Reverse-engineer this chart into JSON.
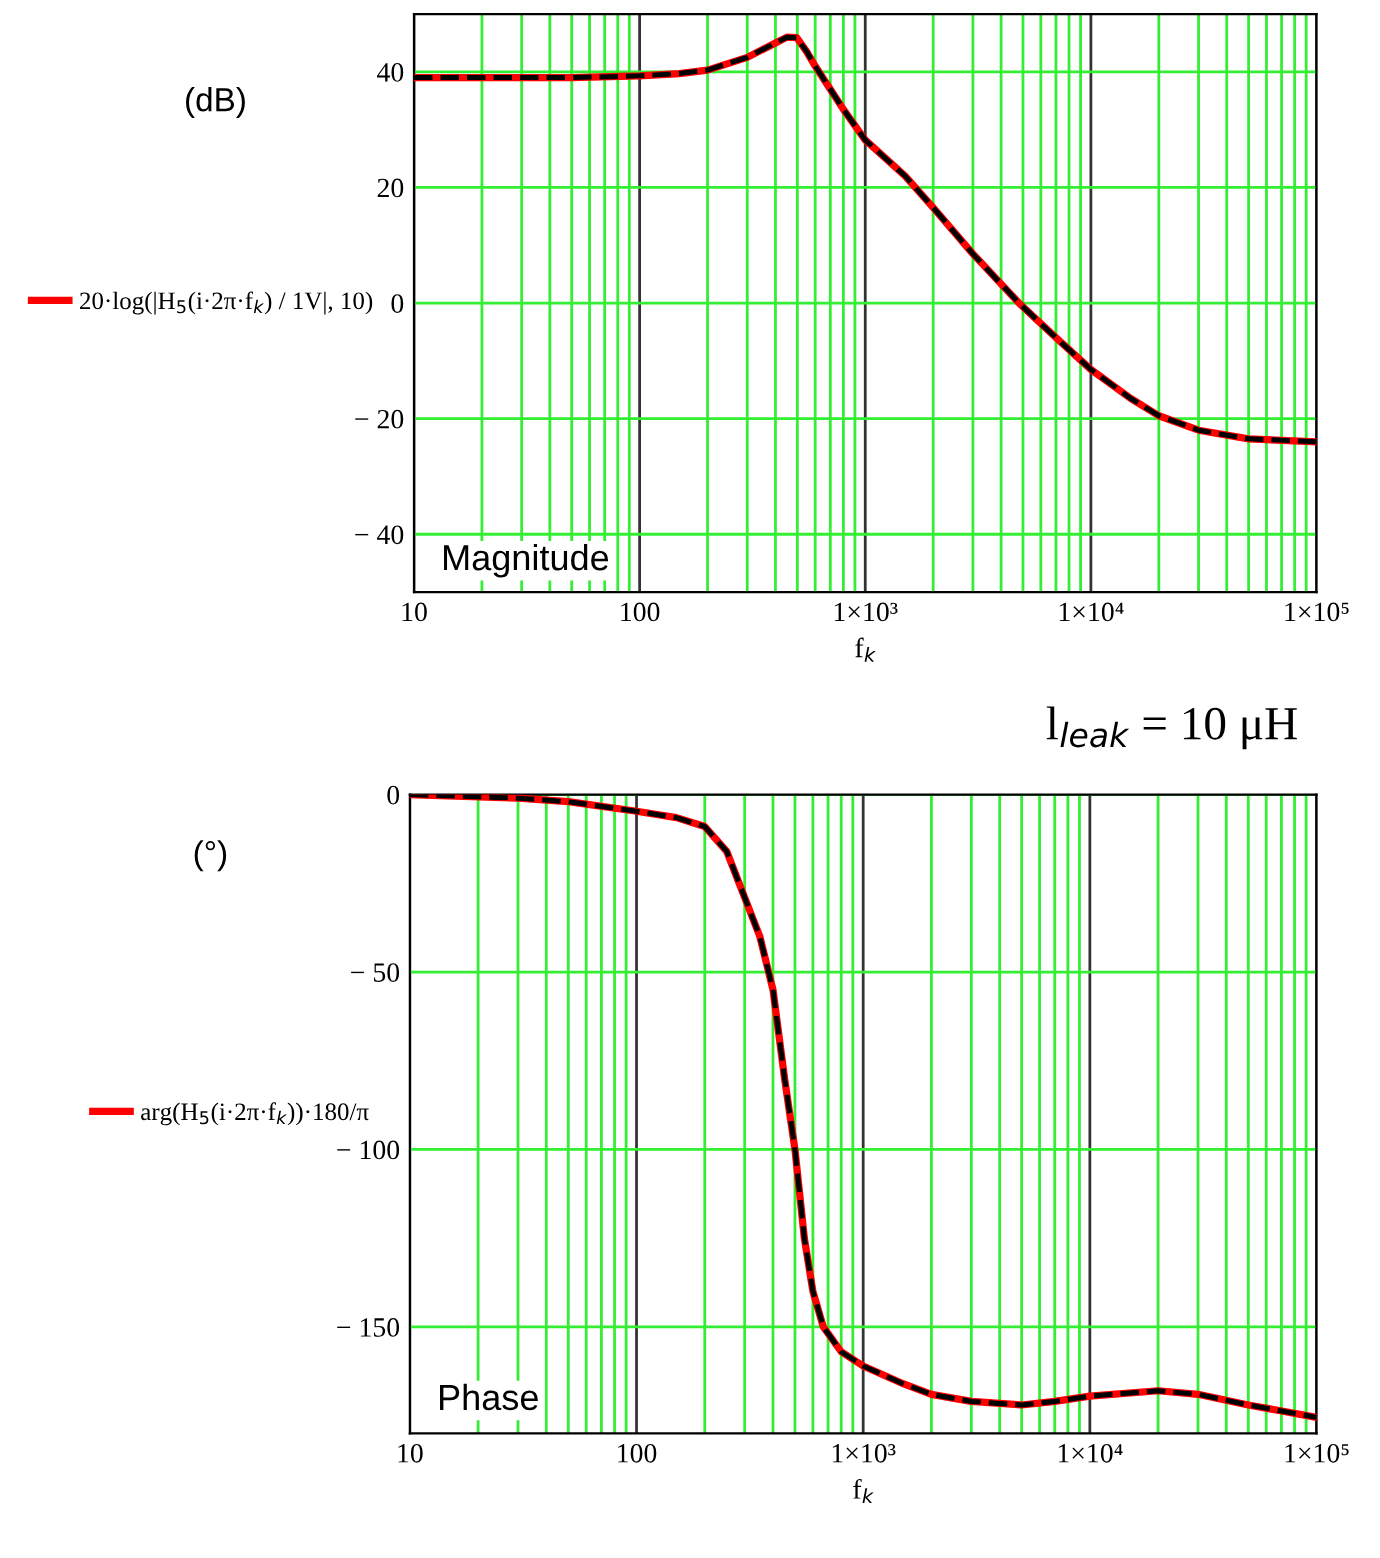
{
  "chart_data": [
    {
      "type": "line",
      "ylabel": "(dB)",
      "xlabel": "f$_{k}$",
      "annotations": [
        "Magnitude"
      ],
      "log": "x",
      "grid": true,
      "legend": "left",
      "marker": "none",
      "x": [
        10,
        20,
        50,
        100,
        150,
        200,
        300,
        400,
        450,
        497,
        550,
        600,
        700,
        800,
        1000,
        1500,
        2000,
        3000,
        4800,
        7000,
        10000,
        15000,
        20000,
        30000,
        50000,
        100000
      ],
      "xlim": [
        10,
        100000
      ],
      "xticks": [
        10,
        100,
        {
          "value": 1000,
          "label": "1×10³"
        },
        {
          "value": 10000,
          "label": "1×10⁴"
        },
        {
          "value": 100000,
          "label": "1×10⁵"
        }
      ],
      "ylim": [
        -50,
        50
      ],
      "yticks": [
        {
          "value": -40,
          "label": "− 40"
        },
        {
          "value": -20,
          "label": "− 20"
        },
        0,
        20,
        40
      ],
      "series": [
        {
          "name": "20·log(|H$_{5}$(i·2π·f$_{k}$) / 1V|, 10)",
          "color": "#ff0000",
          "line_style": "solid",
          "values": [
            39,
            39,
            39,
            39.3,
            39.7,
            40.3,
            42.5,
            45,
            46,
            45.9,
            43.5,
            41,
            37,
            33.5,
            28.2,
            22,
            16.5,
            8.5,
            0,
            -6,
            -11.5,
            -16.5,
            -19.5,
            -22,
            -23.5,
            -24
          ]
        },
        {
          "color": "#000000",
          "line_style": "dashed",
          "values": [
            39,
            39,
            39,
            39.3,
            39.7,
            40.3,
            42.5,
            45,
            46,
            45.9,
            43.5,
            41,
            37,
            33.5,
            28.2,
            22,
            16.5,
            8.5,
            0,
            -6,
            -11.5,
            -16.5,
            -19.5,
            -22,
            -23.5,
            -24
          ]
        }
      ]
    },
    {
      "type": "line",
      "ylabel": "(°)",
      "xlabel": "f$_{k}$",
      "annotations": [
        "Phase",
        "l$_{leak}$ = 10 μH"
      ],
      "log": "x",
      "grid": true,
      "legend": "left",
      "marker": "none",
      "x": [
        10,
        30,
        50,
        100,
        150,
        200,
        250,
        300,
        350,
        400,
        450,
        500,
        550,
        600,
        667,
        800,
        1000,
        1500,
        2000,
        3000,
        5000,
        7000,
        10000,
        20000,
        30000,
        50000,
        100000
      ],
      "xlim": [
        10,
        100000
      ],
      "xticks": [
        10,
        100,
        {
          "value": 1000,
          "label": "1×10³"
        },
        {
          "value": 10000,
          "label": "1×10⁴"
        },
        {
          "value": 100000,
          "label": "1×10⁵"
        }
      ],
      "ylim": [
        -180,
        0
      ],
      "yticks": [
        {
          "value": -150,
          "label": "− 150"
        },
        {
          "value": -100,
          "label": "− 100"
        },
        {
          "value": -50,
          "label": "− 50"
        },
        0
      ],
      "series": [
        {
          "name": "arg(H$_{5}$(i·2π·f$_{k}$))·180/π",
          "color": "#ff0000",
          "line_style": "solid",
          "values": [
            0,
            -1,
            -2,
            -4.7,
            -6.5,
            -9,
            -16,
            -29,
            -40,
            -55,
            -80,
            -100,
            -125,
            -140,
            -150,
            -157,
            -161,
            -166,
            -169,
            -171,
            -172,
            -171,
            -169.5,
            -168,
            -169,
            -172,
            -175.5
          ]
        },
        {
          "color": "#000000",
          "line_style": "dashed",
          "values": [
            0,
            -1,
            -2,
            -4.7,
            -6.5,
            -9,
            -16,
            -29,
            -40,
            -55,
            -80,
            -100,
            -125,
            -140,
            -150,
            -157,
            -161,
            -166,
            -169,
            -171,
            -172,
            -171,
            -169.5,
            -168,
            -169,
            -172,
            -175.5
          ]
        }
      ]
    }
  ]
}
